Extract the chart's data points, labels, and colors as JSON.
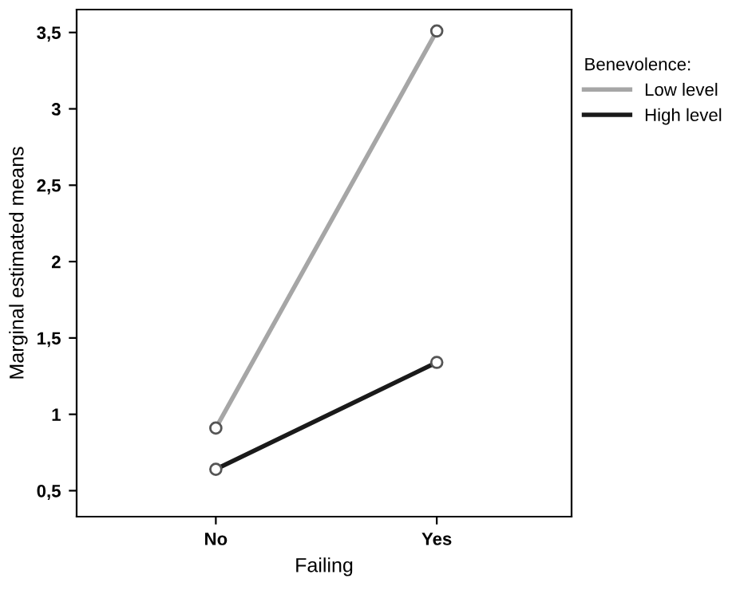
{
  "chart_data": {
    "type": "line",
    "xlabel": "Failing",
    "ylabel": "Marginal estimated means",
    "legend_title": "Benevolence:",
    "categories": [
      "No",
      "Yes"
    ],
    "series": [
      {
        "name": "Low level",
        "color": "#a6a6a6",
        "values": [
          0.91,
          3.51
        ]
      },
      {
        "name": "High level",
        "color": "#1a1a1a",
        "values": [
          0.64,
          1.34
        ]
      }
    ],
    "ylim": [
      0.33,
      3.65
    ],
    "yticks": [
      {
        "value": 0.5,
        "label": "0,5"
      },
      1,
      {
        "value": 1.5,
        "label": "1,5"
      },
      2,
      {
        "value": 2.5,
        "label": "2,5"
      },
      3,
      {
        "value": 3.5,
        "label": "3,5"
      }
    ],
    "marker": "circle",
    "line_style": "solid",
    "grid": false,
    "legend": "top right"
  }
}
